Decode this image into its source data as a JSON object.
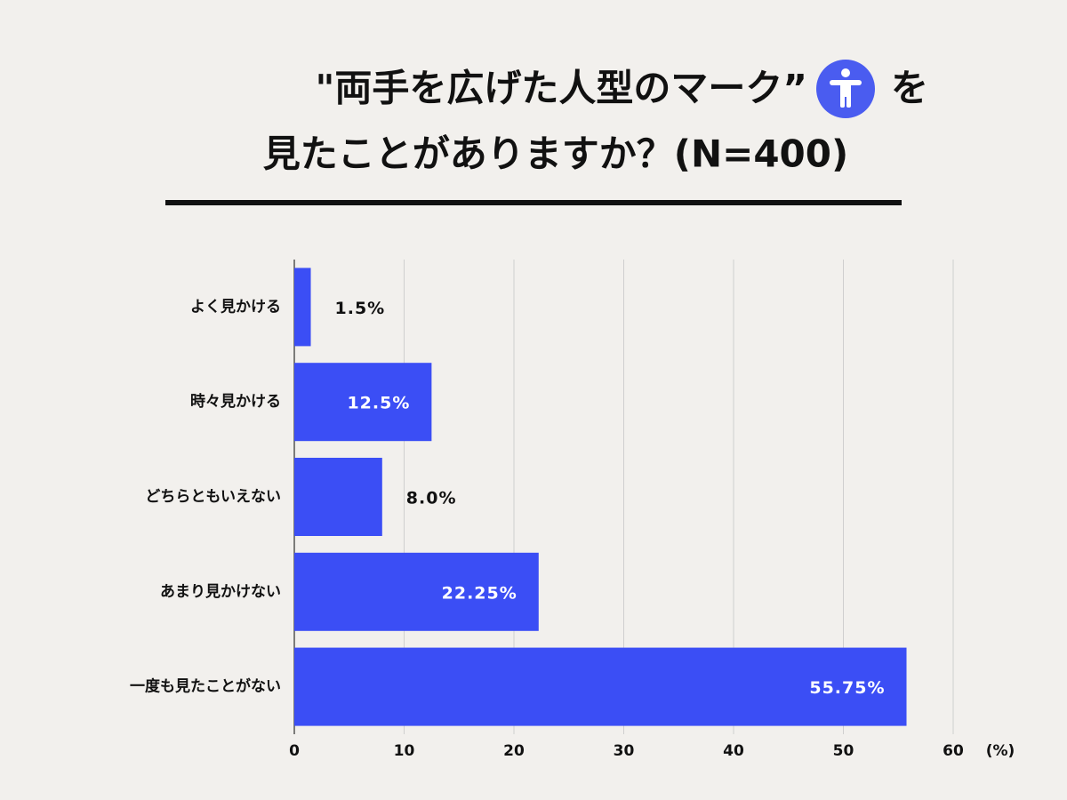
{
  "chart_data": {
    "type": "bar",
    "orientation": "horizontal",
    "title": {
      "before_icon": "\"両手を広げた人型のマーク”",
      "after_icon": "を",
      "line2": "見たことがありますか？(N=400)"
    },
    "categories": [
      "よく見かける",
      "時々見かける",
      "どちらともいえない",
      "あまり見かけない",
      "一度も見たことがない"
    ],
    "values": [
      1.5,
      12.5,
      8.0,
      22.25,
      55.75
    ],
    "value_labels": [
      "1.5%",
      "12.5%",
      "8.0%",
      "22.25%",
      "55.75%"
    ],
    "color": "#3b4ef5",
    "xlim": [
      0,
      60
    ],
    "xticks": [
      0,
      10,
      20,
      30,
      40,
      50,
      60
    ],
    "x_unit": "(%)",
    "grid": true
  }
}
